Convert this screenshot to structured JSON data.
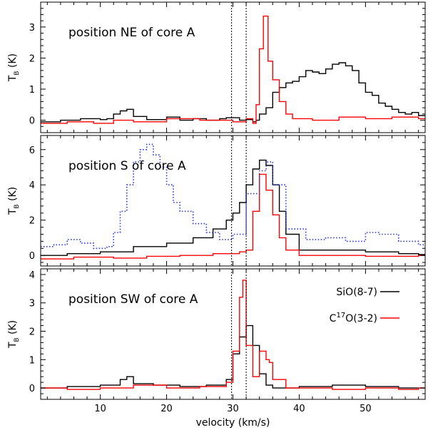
{
  "chart_data": {
    "type": "line",
    "xlabel": "velocity (km/s)",
    "xlim": [
      1,
      59
    ],
    "xticks": [
      10,
      20,
      30,
      40,
      50
    ],
    "reference_lines_kms": [
      29.8,
      32.0
    ],
    "legend": [
      {
        "name": "SiO(8-7)",
        "color": "#000000",
        "style": "solid"
      },
      {
        "name": "C17O(3-2)",
        "color": "#ff0000",
        "style": "solid"
      }
    ],
    "panels": [
      {
        "title": "position NE of core A",
        "ylabel": "TB (K)",
        "ylim": [
          -0.4,
          3.8
        ],
        "yticks": [
          0,
          1,
          2,
          3
        ],
        "series": [
          {
            "name": "SiO(8-7)",
            "color": "#000000",
            "style": "solid",
            "points": [
              [
                1,
                -0.05
              ],
              [
                4,
                0.0
              ],
              [
                7,
                0.05
              ],
              [
                10,
                0.02
              ],
              [
                11,
                0.05
              ],
              [
                12,
                0.2
              ],
              [
                13,
                0.3
              ],
              [
                14,
                0.35
              ],
              [
                15,
                0.12
              ],
              [
                17,
                0.02
              ],
              [
                20,
                0.1
              ],
              [
                22,
                0.0
              ],
              [
                24,
                0.05
              ],
              [
                26,
                0.0
              ],
              [
                28,
                0.05
              ],
              [
                29,
                0.08
              ],
              [
                31,
                0.0
              ],
              [
                32,
                0.02
              ],
              [
                33,
                -0.05
              ],
              [
                33.5,
                0.0
              ],
              [
                34,
                0.2
              ],
              [
                35,
                0.4
              ],
              [
                36,
                0.9
              ],
              [
                37,
                1.05
              ],
              [
                38,
                1.2
              ],
              [
                39,
                1.25
              ],
              [
                40,
                1.4
              ],
              [
                41,
                1.6
              ],
              [
                42,
                1.55
              ],
              [
                43,
                1.5
              ],
              [
                44,
                1.65
              ],
              [
                45,
                1.8
              ],
              [
                46,
                1.85
              ],
              [
                47,
                1.75
              ],
              [
                48,
                1.6
              ],
              [
                49,
                1.2
              ],
              [
                50,
                0.9
              ],
              [
                51,
                0.8
              ],
              [
                52,
                0.55
              ],
              [
                53,
                0.45
              ],
              [
                54,
                0.35
              ],
              [
                55,
                0.25
              ],
              [
                56,
                0.2
              ],
              [
                57,
                0.25
              ],
              [
                58,
                0.15
              ]
            ]
          },
          {
            "name": "C17O(3-2)",
            "color": "#ff0000",
            "style": "solid",
            "points": [
              [
                1,
                -0.1
              ],
              [
                5,
                -0.05
              ],
              [
                9,
                -0.1
              ],
              [
                12,
                0.0
              ],
              [
                15,
                -0.05
              ],
              [
                20,
                0.05
              ],
              [
                25,
                0.0
              ],
              [
                30,
                -0.05
              ],
              [
                32,
                0.05
              ],
              [
                33,
                -0.1
              ],
              [
                33.5,
                0.5
              ],
              [
                34,
                2.3
              ],
              [
                34.6,
                3.35
              ],
              [
                35.3,
                1.9
              ],
              [
                36,
                1.3
              ],
              [
                37,
                0.6
              ],
              [
                38,
                0.2
              ],
              [
                39,
                0.05
              ],
              [
                42,
                0.0
              ],
              [
                46,
                0.1
              ],
              [
                50,
                0.05
              ],
              [
                54,
                0.1
              ],
              [
                58,
                0.05
              ]
            ]
          }
        ]
      },
      {
        "title": "position S of core A",
        "ylabel": "TB (K)",
        "ylim": [
          -0.6,
          6.8
        ],
        "yticks": [
          0,
          2,
          4,
          6
        ],
        "series": [
          {
            "name": "SiO(8-7)",
            "color": "#000000",
            "style": "solid",
            "points": [
              [
                1,
                0.0
              ],
              [
                5,
                0.1
              ],
              [
                10,
                0.2
              ],
              [
                15,
                0.5
              ],
              [
                20,
                0.7
              ],
              [
                24,
                1.0
              ],
              [
                27,
                1.5
              ],
              [
                29,
                2.0
              ],
              [
                30,
                2.4
              ],
              [
                31,
                3.0
              ],
              [
                32,
                4.0
              ],
              [
                33,
                4.9
              ],
              [
                34,
                5.4
              ],
              [
                35,
                5.1
              ],
              [
                36,
                4.0
              ],
              [
                37,
                2.5
              ],
              [
                38,
                1.2
              ],
              [
                40,
                0.3
              ],
              [
                45,
                0.3
              ],
              [
                50,
                0.2
              ],
              [
                55,
                0.1
              ],
              [
                58,
                0.05
              ]
            ]
          },
          {
            "name": "C17O(3-2)",
            "color": "#ff0000",
            "style": "solid",
            "points": [
              [
                1,
                -0.2
              ],
              [
                6,
                -0.1
              ],
              [
                12,
                -0.15
              ],
              [
                17,
                -0.05
              ],
              [
                22,
                0.0
              ],
              [
                27,
                0.1
              ],
              [
                31,
                0.2
              ],
              [
                32,
                0.3
              ],
              [
                33,
                2.5
              ],
              [
                34,
                4.6
              ],
              [
                35,
                3.7
              ],
              [
                36,
                2.3
              ],
              [
                37,
                1.0
              ],
              [
                38,
                0.3
              ],
              [
                40,
                0.0
              ],
              [
                50,
                -0.05
              ],
              [
                58,
                0.0
              ]
            ]
          },
          {
            "name": "unlabeled",
            "color": "#2233ee",
            "style": "dotted",
            "points": [
              [
                1,
                0.5
              ],
              [
                3,
                0.6
              ],
              [
                5,
                0.9
              ],
              [
                7,
                0.7
              ],
              [
                9,
                0.4
              ],
              [
                11,
                0.5
              ],
              [
                12,
                1.3
              ],
              [
                13,
                2.5
              ],
              [
                14,
                4.0
              ],
              [
                15,
                5.3
              ],
              [
                16,
                6.0
              ],
              [
                17,
                6.3
              ],
              [
                18,
                5.7
              ],
              [
                19,
                5.0
              ],
              [
                20,
                4.0
              ],
              [
                21,
                3.0
              ],
              [
                22,
                2.5
              ],
              [
                24,
                1.8
              ],
              [
                26,
                1.3
              ],
              [
                28,
                0.9
              ],
              [
                30,
                1.2
              ],
              [
                32,
                3.5
              ],
              [
                34,
                4.8
              ],
              [
                35,
                5.3
              ],
              [
                36,
                4.0
              ],
              [
                38,
                1.5
              ],
              [
                41,
                0.9
              ],
              [
                44,
                1.0
              ],
              [
                47,
                0.8
              ],
              [
                50,
                1.3
              ],
              [
                52,
                1.2
              ],
              [
                55,
                0.8
              ],
              [
                58,
                0.6
              ]
            ]
          }
        ]
      },
      {
        "title": "position SW of core A",
        "ylabel": "TB (K)",
        "ylim": [
          -0.4,
          4.2
        ],
        "yticks": [
          0,
          1,
          2,
          3,
          4
        ],
        "series": [
          {
            "name": "SiO(8-7)",
            "color": "#000000",
            "style": "solid",
            "points": [
              [
                1,
                0.0
              ],
              [
                5,
                0.05
              ],
              [
                10,
                0.1
              ],
              [
                13,
                0.3
              ],
              [
                14,
                0.4
              ],
              [
                15,
                0.15
              ],
              [
                18,
                0.1
              ],
              [
                22,
                0.05
              ],
              [
                26,
                0.1
              ],
              [
                29,
                0.3
              ],
              [
                30,
                1.2
              ],
              [
                31,
                1.8
              ],
              [
                32,
                2.2
              ],
              [
                33,
                1.5
              ],
              [
                34,
                0.5
              ],
              [
                35,
                0.1
              ],
              [
                36,
                0.0
              ],
              [
                40,
                0.05
              ],
              [
                45,
                0.1
              ],
              [
                50,
                0.05
              ],
              [
                55,
                0.0
              ],
              [
                58,
                0.0
              ]
            ]
          },
          {
            "name": "C17O(3-2)",
            "color": "#ff0000",
            "style": "solid",
            "points": [
              [
                1,
                0.0
              ],
              [
                5,
                -0.05
              ],
              [
                10,
                0.0
              ],
              [
                15,
                0.1
              ],
              [
                20,
                0.0
              ],
              [
                25,
                0.05
              ],
              [
                29,
                0.2
              ],
              [
                30,
                1.3
              ],
              [
                31,
                3.2
              ],
              [
                31.5,
                3.8
              ],
              [
                32,
                1.5
              ],
              [
                33,
                0.4
              ],
              [
                34,
                1.3
              ],
              [
                35,
                1.0
              ],
              [
                35.5,
                0.9
              ],
              [
                36,
                0.3
              ],
              [
                38,
                0.0
              ],
              [
                45,
                -0.05
              ],
              [
                50,
                0.0
              ],
              [
                55,
                -0.05
              ],
              [
                58,
                0.0
              ]
            ]
          }
        ]
      }
    ]
  }
}
